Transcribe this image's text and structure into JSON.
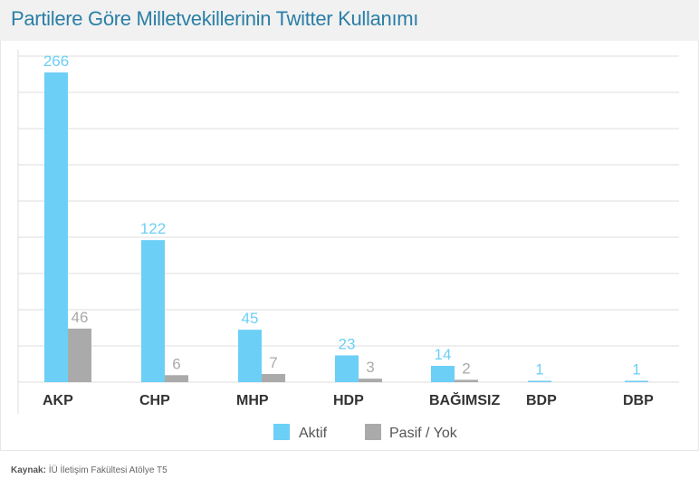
{
  "title": "Partilere Göre Milletvekillerinin Twitter Kullanımı",
  "source": {
    "label": "Kaynak:",
    "text": "İÜ İletişim Fakültesi Atölye T5"
  },
  "colors": {
    "title": "#2a7fa6",
    "aktif": "#6ccff6",
    "pasif": "#aaaaaa",
    "grid": "#dcdcdc",
    "category": "#333333"
  },
  "chart_data": {
    "type": "bar",
    "title": "Partilere Göre Milletvekillerinin Twitter Kullanımı",
    "categories": [
      "AKP",
      "CHP",
      "MHP",
      "HDP",
      "BAĞIMSIZ",
      "BDP",
      "DBP"
    ],
    "series": [
      {
        "name": "Aktif",
        "values": [
          266,
          122,
          45,
          23,
          14,
          1,
          1
        ]
      },
      {
        "name": "Pasif / Yok",
        "values": [
          46,
          6,
          7,
          3,
          2,
          null,
          null
        ]
      }
    ],
    "ylim": [
      0,
      280
    ],
    "grid": true,
    "legend": "bottom-center",
    "data_labels": true
  }
}
